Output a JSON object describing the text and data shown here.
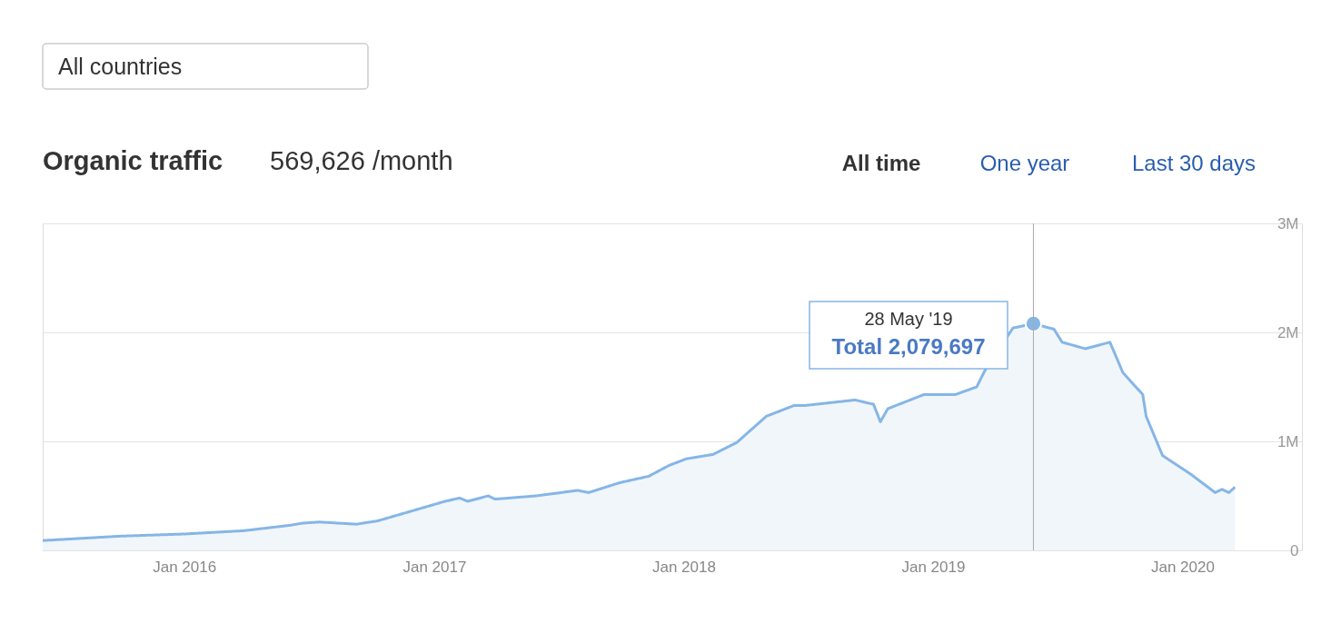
{
  "chart_data": {
    "type": "area",
    "title": "Organic traffic",
    "subtitle": "569,626 /month",
    "x": [
      "2015-06-08",
      "2015-09-28",
      "2016-01-01",
      "2016-03-28",
      "2016-06-04",
      "2016-06-23",
      "2016-07-17",
      "2016-09-09",
      "2016-10-10",
      "2016-12-04",
      "2017-01-17",
      "2017-02-07",
      "2017-02-19",
      "2017-03-21",
      "2017-03-31",
      "2017-05-30",
      "2017-07-30",
      "2017-08-15",
      "2017-09-29",
      "2017-11-11",
      "2017-12-11",
      "2018-01-05",
      "2018-02-13",
      "2018-03-20",
      "2018-05-02",
      "2018-06-12",
      "2018-06-29",
      "2018-09-09",
      "2018-10-06",
      "2018-10-16",
      "2018-10-27",
      "2018-12-19",
      "2019-02-03",
      "2019-03-06",
      "2019-03-18",
      "2019-04-28",
      "2019-05-28",
      "2019-06-27",
      "2019-07-09",
      "2019-08-12",
      "2019-09-17",
      "2019-10-06",
      "2019-11-04",
      "2019-11-09",
      "2019-12-03",
      "2020-01-13",
      "2020-02-18",
      "2020-02-28",
      "2020-03-09",
      "2020-03-18"
    ],
    "series": [
      {
        "color": "#85b6e6",
        "values": [
          90000,
          130000,
          150000,
          180000,
          230000,
          250000,
          260000,
          240000,
          270000,
          370000,
          450000,
          480000,
          450000,
          500000,
          470000,
          500000,
          550000,
          530000,
          620000,
          680000,
          780000,
          840000,
          880000,
          990000,
          1230000,
          1330000,
          1330000,
          1380000,
          1340000,
          1180000,
          1300000,
          1430000,
          1430000,
          1500000,
          1650000,
          2040000,
          2079697,
          2030000,
          1910000,
          1850000,
          1910000,
          1630000,
          1430000,
          1230000,
          870000,
          700000,
          530000,
          560000,
          530000,
          580000
        ]
      },
      {
        "type": "scatter",
        "marker": "circle",
        "color": "#85b6e6",
        "x": [
          "2019-05-28"
        ],
        "values": [
          2079697
        ]
      }
    ],
    "xlim": [
      "2015-06-08",
      "2020-06-24"
    ],
    "xticks": [
      {
        "value": "2016-01-01",
        "label": "Jan 2016"
      },
      {
        "value": "2017-01-01",
        "label": "Jan 2017"
      },
      {
        "value": "2018-01-01",
        "label": "Jan 2018"
      },
      {
        "value": "2019-01-01",
        "label": "Jan 2019"
      },
      {
        "value": "2020-01-01",
        "label": "Jan 2020"
      }
    ],
    "ylim": [
      0,
      3000000
    ],
    "yticks": [
      {
        "value": 0,
        "label": "0"
      },
      {
        "value": 1000000,
        "label": "1M"
      },
      {
        "value": 2000000,
        "label": "2M"
      },
      {
        "value": 3000000,
        "label": "3M"
      }
    ],
    "grid": "y",
    "marker": "none",
    "ref_lines": [
      {
        "axis": "x",
        "value": "2019-05-28",
        "label": null,
        "color": "#aaaaaa"
      }
    ],
    "annotations": [
      "28 May '19",
      "Total 2,079,697",
      "All countries",
      "All time",
      "One year",
      "Last 30 days"
    ]
  }
}
